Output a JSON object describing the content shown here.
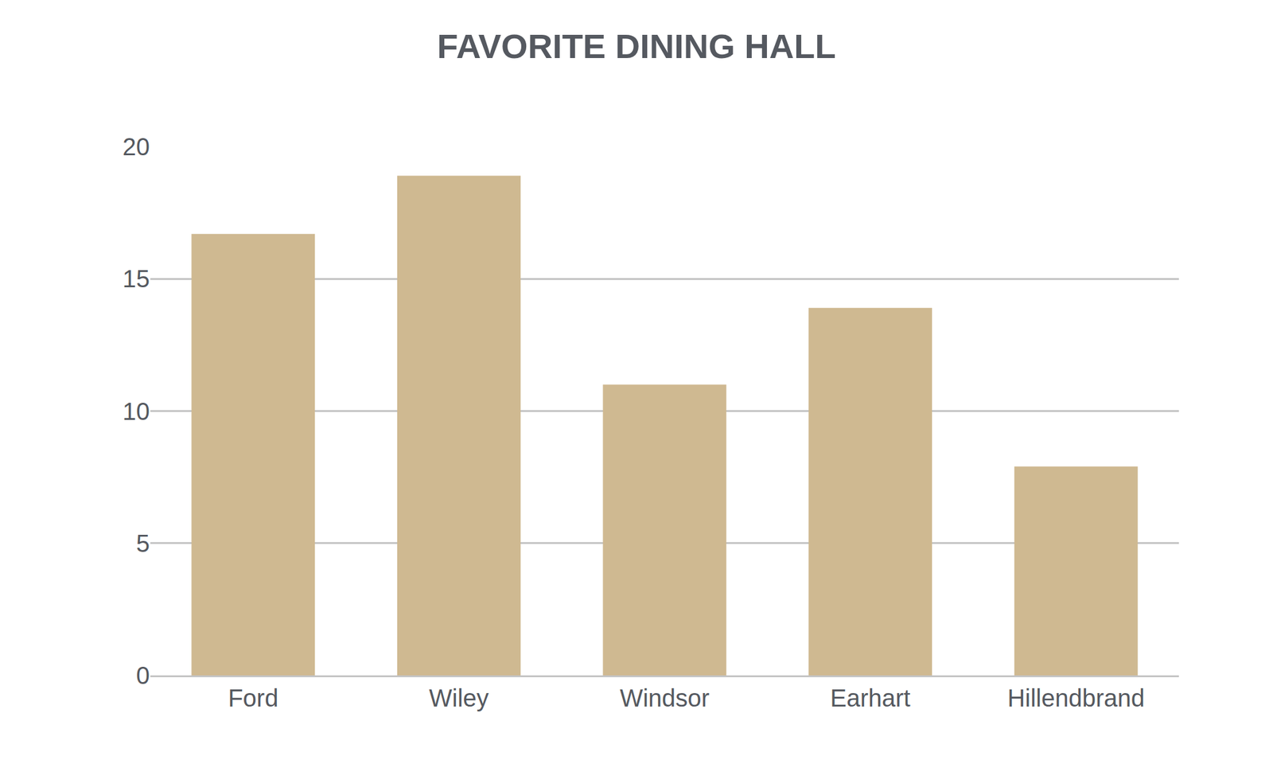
{
  "chart_data": {
    "type": "bar",
    "title": "FAVORITE DINING HALL",
    "categories": [
      "Ford",
      "Wiley",
      "Windsor",
      "Earhart",
      "Hillendbrand"
    ],
    "values": [
      16.7,
      18.9,
      11.0,
      13.9,
      7.9
    ],
    "color": "#cfb991",
    "ylim": [
      0,
      20
    ],
    "yticks": [
      0,
      5,
      10,
      15,
      20
    ],
    "grid": true
  }
}
